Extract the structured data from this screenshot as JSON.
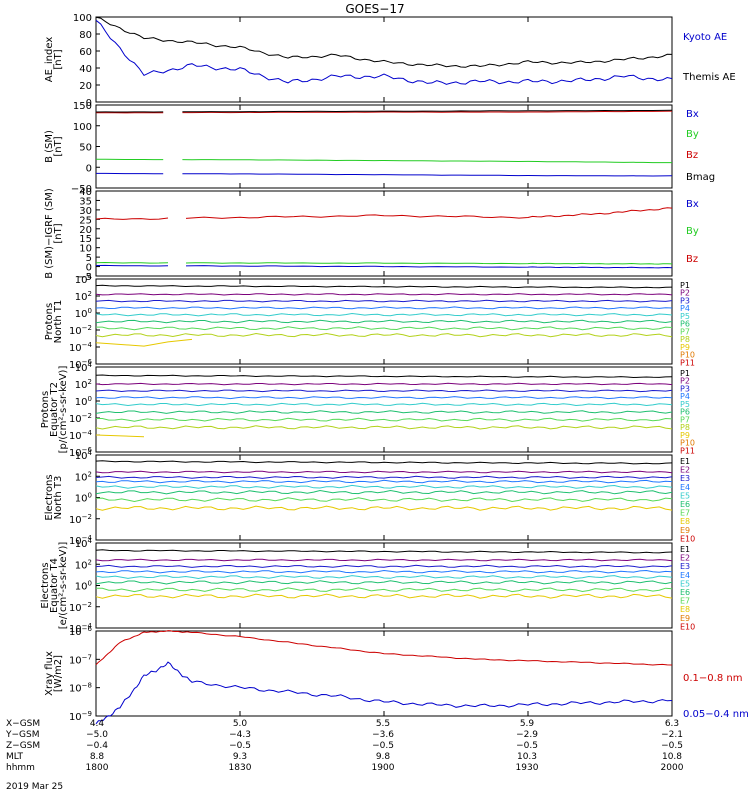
{
  "title": "GOES−17",
  "colors": {
    "P1": "#000000",
    "P2": "#7b007b",
    "P3": "#1a1acd",
    "P4": "#1f77ff",
    "P5": "#33cccc",
    "P6": "#1fbf6f",
    "P7": "#57d957",
    "P8": "#b3d11a",
    "P9": "#e6c800",
    "P10": "#e07800",
    "P11": "#cc0000",
    "E1": "#000000",
    "E2": "#7b007b",
    "E3": "#1a1acd",
    "E4": "#1f77ff",
    "E5": "#33cccc",
    "E6": "#1fbf6f",
    "E7": "#57d957",
    "E8": "#e6c800",
    "E9": "#e07800",
    "E10": "#cc0000",
    "kyoto": "#0000cc",
    "themis": "#000000",
    "bx": "#0000cc",
    "by": "#22cc22",
    "bz": "#cc0000",
    "bmag": "#000000",
    "xl": "#cc0000",
    "xs": "#0000cc"
  },
  "chart_data": [
    {
      "type": "line",
      "ylabel": "AE_index [nT]",
      "ylim": [
        0,
        100
      ],
      "ticks": [
        "0",
        "20",
        "40",
        "60",
        "80",
        "100"
      ],
      "x_hhmm": [
        1800,
        1810,
        1820,
        1830,
        1840,
        1850,
        1900,
        1910,
        1920,
        1930,
        1940,
        1950,
        2000
      ],
      "series": [
        {
          "name": "Kyoto AE",
          "color_key": "kyoto",
          "values": [
            95,
            32,
            43,
            38,
            23,
            30,
            30,
            22,
            24,
            24,
            25,
            30,
            26
          ]
        },
        {
          "name": "Themis AE",
          "color_key": "themis",
          "values": [
            99,
            75,
            70,
            64,
            52,
            55,
            47,
            43,
            42,
            47,
            46,
            50,
            55
          ]
        }
      ]
    },
    {
      "type": "line",
      "ylabel": "B (SM) [nT]",
      "ylim": [
        -50,
        150
      ],
      "ticks": [
        "−50",
        "0",
        "50",
        "100",
        "150"
      ],
      "x_hhmm": [
        1800,
        1830,
        1900,
        1930,
        2000
      ],
      "series": [
        {
          "name": "Bx",
          "color_key": "bx",
          "values": [
            -15,
            -16,
            -18,
            -20,
            -21
          ]
        },
        {
          "name": "By",
          "color_key": "by",
          "values": [
            19,
            18,
            16,
            14,
            11
          ]
        },
        {
          "name": "Bz",
          "color_key": "bz",
          "values": [
            131,
            132,
            133,
            133,
            135
          ]
        },
        {
          "name": "Bmag",
          "color_key": "bmag",
          "values": [
            133,
            134,
            135,
            136,
            137
          ]
        }
      ]
    },
    {
      "type": "line",
      "ylabel": "B (SM)−IGRF (SM) [nT]",
      "ylim": [
        -5,
        40
      ],
      "ticks": [
        "−5",
        "0",
        "5",
        "10",
        "15",
        "20",
        "25",
        "30",
        "35",
        "40"
      ],
      "x_hhmm": [
        1800,
        1830,
        1900,
        1930,
        1945,
        2000
      ],
      "series": [
        {
          "name": "Bx",
          "color_key": "bx",
          "values": [
            0.5,
            0.3,
            0.0,
            -0.3,
            -0.5,
            -0.6
          ]
        },
        {
          "name": "By",
          "color_key": "by",
          "values": [
            2.0,
            1.9,
            1.8,
            1.6,
            1.5,
            1.4
          ]
        },
        {
          "name": "Bz",
          "color_key": "bz",
          "values": [
            25,
            26,
            27,
            26,
            28,
            31
          ]
        }
      ]
    },
    {
      "type": "line",
      "ylabel": "Protons North T1",
      "log_exponents": [
        -6,
        4
      ],
      "labels": [
        "P1",
        "P2",
        "P3",
        "P4",
        "P5",
        "P6",
        "P7",
        "P8",
        "P9",
        "P10",
        "P11"
      ],
      "levels_log10": [
        3.2,
        2.2,
        1.4,
        0.6,
        -0.2,
        -1.0,
        -1.8,
        -2.6
      ],
      "p9_x_hhmm": [
        1800,
        1810,
        1815,
        1820
      ],
      "p9_log10": [
        -3.5,
        -3.9,
        -3.4,
        -3.1
      ]
    },
    {
      "type": "line",
      "ylabel": "Protons Equator T2 [p/(cm²-s-sr-keV)]",
      "log_exponents": [
        -6,
        4
      ],
      "labels": [
        "P1",
        "P2",
        "P3",
        "P4",
        "P5",
        "P6",
        "P7",
        "P8",
        "P9",
        "P10",
        "P11"
      ],
      "levels_log10": [
        3.0,
        2.0,
        1.2,
        0.4,
        -0.4,
        -1.3,
        -2.2,
        -3.1
      ],
      "p9_x_hhmm": [
        1800,
        1810
      ],
      "p9_log10": [
        -4.0,
        -4.2
      ]
    },
    {
      "type": "line",
      "ylabel": "Electrons North T3",
      "log_exponents": [
        -4,
        4
      ],
      "labels": [
        "E1",
        "E2",
        "E3",
        "E4",
        "E5",
        "E6",
        "E7",
        "E8",
        "E9",
        "E10"
      ],
      "levels_log10": [
        3.4,
        2.4,
        1.9,
        1.5,
        1.0,
        0.5,
        -0.2,
        -1.0
      ]
    },
    {
      "type": "line",
      "ylabel": "Electrons Equator T4 [e/(cm²-s-sr-keV)]",
      "log_exponents": [
        -4,
        4
      ],
      "labels": [
        "E1",
        "E2",
        "E3",
        "E4",
        "E5",
        "E6",
        "E7",
        "E8",
        "E9",
        "E10"
      ],
      "levels_log10": [
        3.3,
        2.4,
        1.8,
        1.3,
        0.8,
        0.3,
        -0.4,
        -1.0
      ]
    },
    {
      "type": "line",
      "ylabel": "Xray flux [W/m2]",
      "log_exponents": [
        -9,
        -6
      ],
      "x_hhmm": [
        1800,
        1805,
        1810,
        1815,
        1820,
        1830,
        1840,
        1850,
        1900,
        1910,
        1920,
        1930,
        1940,
        1950,
        2000
      ],
      "series": [
        {
          "name": "0.1−0.8 nm",
          "color_key": "xl",
          "values_log10": [
            -7.2,
            -6.4,
            -6.05,
            -6.0,
            -6.05,
            -6.2,
            -6.4,
            -6.6,
            -6.8,
            -6.9,
            -7.0,
            -7.05,
            -7.1,
            -7.15,
            -7.2
          ]
        },
        {
          "name": "0.05−0.4 nm",
          "color_key": "xs",
          "values_log10": [
            -9.3,
            -8.7,
            -7.6,
            -7.15,
            -7.8,
            -8.0,
            -8.15,
            -8.3,
            -8.5,
            -8.6,
            -8.65,
            -8.6,
            -8.55,
            -8.5,
            -8.45
          ]
        }
      ]
    }
  ],
  "xaxis": {
    "row_labels": [
      "X−GSM",
      "Y−GSM",
      "Z−GSM",
      "MLT",
      "hhmm"
    ],
    "columns": [
      {
        "x_gsm": "4.4",
        "y_gsm": "−5.0",
        "z_gsm": "−0.4",
        "mlt": "8.8",
        "hhmm": "1800"
      },
      {
        "x_gsm": "5.0",
        "y_gsm": "−4.3",
        "z_gsm": "−0.5",
        "mlt": "9.3",
        "hhmm": "1830"
      },
      {
        "x_gsm": "5.5",
        "y_gsm": "−3.6",
        "z_gsm": "−0.5",
        "mlt": "9.8",
        "hhmm": "1900"
      },
      {
        "x_gsm": "5.9",
        "y_gsm": "−2.9",
        "z_gsm": "−0.5",
        "mlt": "10.3",
        "hhmm": "1930"
      },
      {
        "x_gsm": "6.3",
        "y_gsm": "−2.1",
        "z_gsm": "−0.5",
        "mlt": "10.8",
        "hhmm": "2000"
      }
    ],
    "date": "2019 Mar 25"
  }
}
